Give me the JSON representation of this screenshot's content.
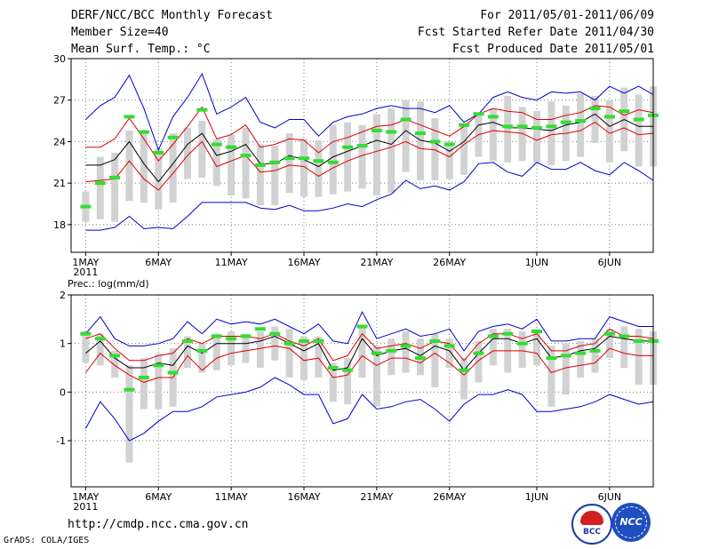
{
  "header": {
    "title": "DERF/NCC/BCC Monthly Forecast",
    "member_size": "Member Size=40",
    "variable": "Mean Surf. Temp.: °C",
    "period": "For 2011/05/01-2011/06/09",
    "fcst_start": "Fcst Started Refer Date 2011/04/30",
    "fcst_produced": "Fcst Produced Date 2011/05/01"
  },
  "footer": {
    "url": "http://cmdp.ncc.cma.gov.cn",
    "grads": "GrADS: COLA/IGES",
    "logo_bcc": "BCC",
    "logo_ncc": "NCC"
  },
  "colors": {
    "envelope": "#0000cc",
    "spread": "#dd0000",
    "mean": "#000000",
    "box": "#d2d2d2",
    "obs_marker": "#33dd33"
  },
  "chart_data": [
    {
      "type": "ensemble-boxplot",
      "ylabel": "Mean Surf. Temp.: °C",
      "ylim": [
        16,
        30
      ],
      "yticks": [
        18,
        21,
        24,
        27,
        30
      ],
      "xlim": [
        0,
        40
      ],
      "x_tick_days": [
        1,
        6,
        11,
        16,
        21,
        26,
        32,
        37
      ],
      "x_tick_labels": [
        "1MAY",
        "6MAY",
        "11MAY",
        "16MAY",
        "21MAY",
        "26MAY",
        "1JUN",
        "6JUN"
      ],
      "x_year": "2011",
      "grid": true,
      "days": [
        1,
        2,
        3,
        4,
        5,
        6,
        7,
        8,
        9,
        10,
        11,
        12,
        13,
        14,
        15,
        16,
        17,
        18,
        19,
        20,
        21,
        22,
        23,
        24,
        25,
        26,
        27,
        28,
        29,
        30,
        31,
        32,
        33,
        34,
        35,
        36,
        37,
        38,
        39,
        40
      ],
      "series": [
        {
          "name": "ensemble max",
          "values": [
            25.6,
            26.6,
            27.2,
            28.8,
            26.4,
            23.4,
            25.8,
            27.2,
            28.9,
            26.0,
            26.5,
            27.2,
            25.4,
            25.0,
            25.6,
            25.6,
            24.4,
            25.4,
            25.8,
            26.0,
            26.4,
            26.6,
            26.4,
            26.4,
            26.1,
            26.6,
            25.4,
            26.0,
            27.2,
            27.6,
            27.2,
            27.0,
            27.6,
            27.5,
            27.6,
            27.0,
            28.0,
            27.5,
            28.0,
            27.4
          ]
        },
        {
          "name": "mean + spread",
          "values": [
            23.6,
            23.6,
            24.2,
            25.7,
            24.2,
            22.6,
            23.8,
            25.1,
            26.5,
            24.2,
            24.5,
            25.2,
            23.6,
            23.8,
            24.2,
            24.1,
            23.2,
            24.0,
            24.3,
            24.7,
            25.1,
            25.2,
            25.6,
            25.2,
            24.8,
            24.4,
            25.1,
            26.0,
            26.4,
            26.2,
            26.1,
            25.6,
            25.6,
            25.9,
            26.1,
            26.6,
            26.5,
            25.9,
            26.3,
            26.1
          ]
        },
        {
          "name": "ensemble mean",
          "values": [
            22.3,
            22.3,
            22.7,
            24.0,
            22.4,
            21.1,
            22.4,
            23.8,
            24.6,
            23.0,
            23.3,
            23.8,
            22.4,
            22.4,
            23.0,
            22.7,
            22.2,
            22.9,
            23.3,
            23.7,
            24.1,
            23.8,
            24.8,
            24.1,
            23.9,
            23.3,
            24.0,
            25.2,
            25.4,
            25.0,
            25.0,
            24.9,
            24.8,
            25.2,
            25.4,
            26.0,
            25.1,
            25.6,
            25.1,
            25.1
          ]
        },
        {
          "name": "mean - spread",
          "values": [
            21.1,
            21.2,
            21.3,
            22.6,
            21.3,
            20.5,
            21.7,
            23.0,
            24.0,
            22.2,
            22.6,
            23.0,
            21.8,
            21.9,
            22.3,
            22.2,
            21.5,
            22.1,
            22.6,
            23.0,
            23.3,
            23.6,
            24.0,
            23.5,
            23.4,
            22.9,
            23.8,
            24.5,
            24.8,
            24.7,
            24.6,
            24.1,
            24.5,
            24.6,
            24.8,
            25.4,
            24.6,
            25.0,
            24.5,
            24.6
          ]
        },
        {
          "name": "ensemble min",
          "values": [
            17.6,
            17.6,
            17.8,
            18.6,
            17.7,
            17.8,
            17.7,
            18.6,
            19.6,
            19.6,
            19.6,
            19.6,
            19.2,
            19.1,
            19.4,
            19.0,
            19.0,
            19.2,
            19.5,
            19.3,
            19.8,
            20.2,
            21.2,
            20.6,
            20.8,
            20.5,
            21.1,
            22.4,
            22.5,
            21.8,
            21.5,
            22.5,
            22.0,
            22.0,
            22.5,
            21.9,
            21.6,
            22.5,
            21.9,
            21.2
          ]
        },
        {
          "name": "box high",
          "values": [
            20.4,
            22.9,
            23.2,
            24.8,
            24.6,
            23.5,
            24.6,
            25.0,
            25.5,
            24.2,
            24.5,
            25.0,
            23.8,
            23.7,
            24.6,
            24.2,
            24.1,
            25.2,
            25.4,
            25.2,
            26.0,
            26.4,
            27.0,
            26.9,
            25.7,
            24.0,
            25.1,
            25.9,
            26.4,
            27.3,
            26.5,
            26.2,
            26.9,
            26.6,
            27.5,
            27.3,
            27.0,
            27.9,
            27.4,
            28.0
          ]
        },
        {
          "name": "box low",
          "values": [
            18.2,
            18.4,
            18.2,
            19.7,
            19.6,
            19.1,
            19.6,
            21.3,
            21.4,
            20.8,
            20.1,
            19.9,
            19.4,
            19.4,
            20.3,
            20.0,
            20.0,
            20.2,
            20.4,
            20.6,
            20.1,
            20.3,
            21.8,
            21.2,
            21.2,
            21.3,
            21.6,
            22.9,
            22.6,
            22.5,
            22.6,
            22.4,
            22.3,
            22.6,
            22.9,
            23.9,
            22.5,
            23.3,
            22.2,
            22.2
          ]
        },
        {
          "name": "observed",
          "values": [
            19.3,
            21.0,
            21.4,
            25.8,
            24.7,
            23.2,
            24.3,
            null,
            26.3,
            23.8,
            23.6,
            23.0,
            22.3,
            22.5,
            22.8,
            22.8,
            22.6,
            22.5,
            23.6,
            23.7,
            24.8,
            24.7,
            25.6,
            24.6,
            24.0,
            23.8,
            25.2,
            26.0,
            25.8,
            25.1,
            25.1,
            25.0,
            25.1,
            25.4,
            25.5,
            26.4,
            25.8,
            26.2,
            25.6,
            25.9
          ]
        }
      ]
    },
    {
      "type": "ensemble-boxplot",
      "ylabel": "Prec.: log(mm/d)",
      "ylim": [
        -1.95,
        2.0
      ],
      "yticks": [
        -1,
        0,
        1,
        2
      ],
      "xlim": [
        0,
        40
      ],
      "x_tick_days": [
        1,
        6,
        11,
        16,
        21,
        26,
        32,
        37
      ],
      "x_tick_labels": [
        "1MAY",
        "6MAY",
        "11MAY",
        "16MAY",
        "21MAY",
        "26MAY",
        "1JUN",
        "6JUN"
      ],
      "x_year": "2011",
      "grid": true,
      "days": [
        1,
        2,
        3,
        4,
        5,
        6,
        7,
        8,
        9,
        10,
        11,
        12,
        13,
        14,
        15,
        16,
        17,
        18,
        19,
        20,
        21,
        22,
        23,
        24,
        25,
        26,
        27,
        28,
        29,
        30,
        31,
        32,
        33,
        34,
        35,
        36,
        37,
        38,
        39,
        40
      ],
      "series": [
        {
          "name": "ensemble max",
          "values": [
            1.2,
            1.55,
            1.1,
            0.95,
            0.95,
            1.0,
            1.1,
            1.45,
            1.2,
            1.5,
            1.4,
            1.45,
            1.4,
            1.5,
            1.35,
            1.2,
            1.4,
            1.05,
            1.0,
            1.65,
            1.1,
            1.2,
            1.3,
            1.15,
            1.2,
            1.3,
            0.85,
            1.25,
            1.35,
            1.4,
            1.3,
            1.5,
            1.05,
            1.05,
            1.1,
            1.1,
            1.55,
            1.45,
            1.35,
            1.35
          ]
        },
        {
          "name": "mean + spread",
          "values": [
            1.1,
            1.2,
            0.9,
            0.65,
            0.65,
            0.75,
            0.8,
            1.1,
            1.0,
            1.15,
            1.15,
            1.15,
            1.1,
            1.2,
            1.05,
            0.95,
            1.1,
            0.65,
            0.75,
            1.2,
            0.9,
            0.95,
            1.0,
            0.9,
            1.05,
            1.0,
            0.65,
            1.0,
            1.2,
            1.2,
            1.1,
            1.2,
            0.85,
            0.85,
            0.95,
            1.0,
            1.3,
            1.15,
            1.15,
            1.1
          ]
        },
        {
          "name": "ensemble mean",
          "values": [
            0.8,
            1.05,
            0.7,
            0.5,
            0.5,
            0.6,
            0.55,
            0.95,
            0.8,
            1.0,
            1.0,
            1.0,
            1.05,
            1.15,
            1.0,
            0.85,
            1.0,
            0.45,
            0.5,
            1.1,
            0.75,
            0.85,
            0.9,
            0.75,
            0.95,
            0.85,
            0.45,
            0.8,
            1.1,
            1.1,
            1.0,
            1.1,
            0.7,
            0.75,
            0.85,
            0.9,
            1.15,
            1.1,
            1.05,
            1.05
          ]
        },
        {
          "name": "mean - spread",
          "values": [
            0.4,
            0.8,
            0.55,
            0.35,
            0.2,
            0.3,
            0.3,
            0.75,
            0.45,
            0.7,
            0.8,
            0.85,
            0.9,
            0.95,
            0.9,
            0.65,
            0.7,
            0.3,
            0.35,
            0.75,
            0.55,
            0.7,
            0.7,
            0.6,
            0.8,
            0.6,
            0.35,
            0.65,
            0.85,
            0.85,
            0.85,
            0.8,
            0.4,
            0.5,
            0.55,
            0.6,
            0.9,
            0.8,
            0.75,
            0.75
          ]
        },
        {
          "name": "ensemble min",
          "values": [
            -0.75,
            -0.2,
            -0.55,
            -1.0,
            -0.85,
            -0.6,
            -0.4,
            -0.4,
            -0.3,
            -0.1,
            -0.05,
            0.0,
            0.1,
            0.3,
            0.15,
            -0.05,
            -0.05,
            -0.65,
            -0.55,
            -0.05,
            -0.35,
            -0.3,
            -0.2,
            -0.15,
            -0.35,
            -0.6,
            -0.25,
            -0.05,
            -0.05,
            0.05,
            -0.05,
            -0.4,
            -0.4,
            -0.35,
            -0.3,
            -0.2,
            -0.05,
            -0.15,
            -0.25,
            -0.2
          ]
        },
        {
          "name": "box high",
          "values": [
            1.25,
            1.2,
            0.85,
            0.55,
            0.7,
            0.8,
            0.9,
            1.15,
            1.0,
            1.2,
            1.25,
            1.2,
            1.25,
            1.35,
            1.3,
            1.15,
            1.15,
            0.6,
            0.7,
            1.35,
            0.95,
            1.1,
            1.25,
            1.1,
            1.2,
            1.1,
            0.7,
            1.05,
            1.3,
            1.3,
            1.25,
            1.3,
            0.95,
            1.0,
            1.05,
            1.1,
            1.3,
            1.35,
            1.3,
            1.25
          ]
        },
        {
          "name": "box low",
          "values": [
            0.6,
            0.55,
            0.3,
            -1.45,
            -0.35,
            -0.35,
            -0.3,
            0.5,
            0.4,
            0.45,
            0.55,
            0.6,
            0.5,
            0.65,
            0.3,
            0.25,
            0.3,
            -0.2,
            -0.25,
            0.3,
            -0.3,
            0.35,
            0.4,
            0.35,
            0.1,
            0.5,
            -0.15,
            0.2,
            0.55,
            0.4,
            0.5,
            0.55,
            -0.3,
            -0.05,
            0.3,
            0.4,
            0.7,
            0.5,
            0.15,
            0.15
          ]
        },
        {
          "name": "observed",
          "values": [
            1.2,
            1.1,
            0.75,
            0.05,
            0.3,
            0.55,
            0.4,
            1.05,
            0.85,
            1.15,
            1.1,
            1.15,
            1.3,
            1.2,
            1.0,
            1.05,
            1.05,
            0.5,
            0.45,
            1.35,
            0.8,
            0.85,
            0.95,
            0.7,
            1.05,
            0.95,
            0.45,
            0.8,
            1.15,
            1.2,
            1.0,
            1.25,
            0.7,
            0.75,
            0.8,
            0.85,
            1.2,
            1.15,
            1.05,
            1.05
          ]
        }
      ]
    }
  ]
}
